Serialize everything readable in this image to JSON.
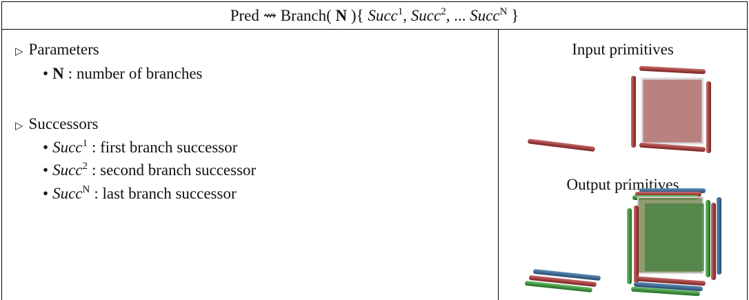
{
  "header": {
    "pred": "Pred",
    "arrow": "⇝",
    "func": "Branch(",
    "param": "N",
    "open": "){",
    "succ": "Succ",
    "sup1": "1",
    "sep1": ",",
    "sup2": "2",
    "sep2": ", ...",
    "supN": "N",
    "close": "}"
  },
  "sections": [
    {
      "marker": "▷",
      "title": "Parameters",
      "items": [
        {
          "term": "N",
          "text": ": number of branches"
        }
      ]
    },
    {
      "marker": "▷",
      "title": "Successors",
      "items": [
        {
          "term": "Succ",
          "sup": "1",
          "text": ": first branch successor"
        },
        {
          "term": "Succ",
          "sup": "2",
          "text": ": second branch successor"
        },
        {
          "term": "Succ",
          "sup": "N",
          "text": ": last branch successor"
        }
      ]
    }
  ],
  "input_label": "Input primitives",
  "output_label": "Output primitives"
}
